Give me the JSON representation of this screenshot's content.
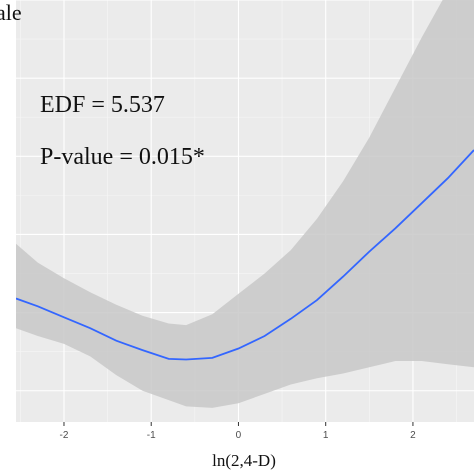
{
  "chart_data": {
    "type": "line",
    "title": "",
    "ylabel": "ale",
    "xlabel": "ln(2,4-D)",
    "annotations": [
      "EDF = 5.537",
      "P-value = 0.015*"
    ],
    "xlim": [
      -2.55,
      2.7
    ],
    "ylim": [
      -3.5,
      10
    ],
    "x_ticks": [
      -2,
      -1,
      0,
      1,
      2
    ],
    "x_tick_labels": [
      "-2",
      "-1",
      "0",
      "1",
      "2"
    ],
    "y_gridlines": [
      -2.5,
      0,
      2.5,
      5,
      7.5,
      10
    ],
    "grid": true,
    "background_color": "#ebebeb",
    "line_color": "#3366ff",
    "band_color": "#c8c8c8",
    "series": [
      {
        "x": [
          -2.55,
          -2.3,
          -2.0,
          -1.7,
          -1.4,
          -1.1,
          -0.8,
          -0.6,
          -0.3,
          0.0,
          0.3,
          0.6,
          0.9,
          1.2,
          1.5,
          1.8,
          2.1,
          2.4,
          2.7
        ],
        "y": [
          0.45,
          0.2,
          -0.15,
          -0.5,
          -0.9,
          -1.2,
          -1.48,
          -1.5,
          -1.45,
          -1.15,
          -0.75,
          -0.2,
          0.4,
          1.15,
          1.95,
          2.7,
          3.5,
          4.3,
          5.2
        ],
        "lower": [
          -0.5,
          -0.75,
          -1.0,
          -1.4,
          -2.0,
          -2.5,
          -2.8,
          -3.0,
          -3.05,
          -2.9,
          -2.6,
          -2.3,
          -2.1,
          -1.95,
          -1.75,
          -1.55,
          -1.55,
          -1.65,
          -1.75
        ],
        "upper": [
          2.2,
          1.6,
          1.1,
          0.65,
          0.25,
          -0.1,
          -0.35,
          -0.4,
          -0.05,
          0.6,
          1.25,
          2.0,
          3.0,
          4.2,
          5.6,
          7.2,
          8.8,
          10.3,
          11.8
        ]
      }
    ]
  }
}
